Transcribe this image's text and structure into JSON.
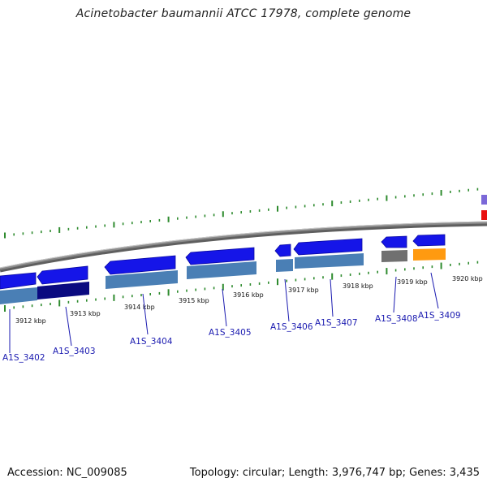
{
  "title": "Acinetobacter baumannii ATCC 17978, complete genome",
  "footer": {
    "accession": "Accession: NC_009085",
    "summary": "Topology: circular; Length: 3,976,747 bp; Genes: 3,435"
  },
  "colors": {
    "backbone": "#8a8a8a",
    "tick_green": "#2e8b2e",
    "forward_gene": "#1515e8",
    "cds_steelblue": "#4a7fb5",
    "cds_navy": "#0a0a80",
    "cds_gray": "#707070",
    "cds_orange": "#ff9a10",
    "edge_purple": "#7b68d8",
    "edge_red": "#e81010",
    "label_link": "#1a1ab0"
  },
  "kbp_labels": [
    "3912 kbp",
    "3913 kbp",
    "3914 kbp",
    "3915 kbp",
    "3916 kbp",
    "3917 kbp",
    "3918 kbp",
    "3919 kbp",
    "3920 kbp"
  ],
  "genes": [
    {
      "locus": "A1S_3402",
      "strand": "-",
      "feature_color": "steelblue"
    },
    {
      "locus": "A1S_3403",
      "strand": "-",
      "feature_color": "navy"
    },
    {
      "locus": "A1S_3404",
      "strand": "-",
      "feature_color": "steelblue"
    },
    {
      "locus": "A1S_3405",
      "strand": "-",
      "feature_color": "steelblue"
    },
    {
      "locus": "A1S_3406",
      "strand": "-",
      "feature_color": "steelblue"
    },
    {
      "locus": "A1S_3407",
      "strand": "-",
      "feature_color": "steelblue"
    },
    {
      "locus": "A1S_3408",
      "strand": "-",
      "feature_color": "gray"
    },
    {
      "locus": "A1S_3409",
      "strand": "-",
      "feature_color": "orange"
    }
  ]
}
